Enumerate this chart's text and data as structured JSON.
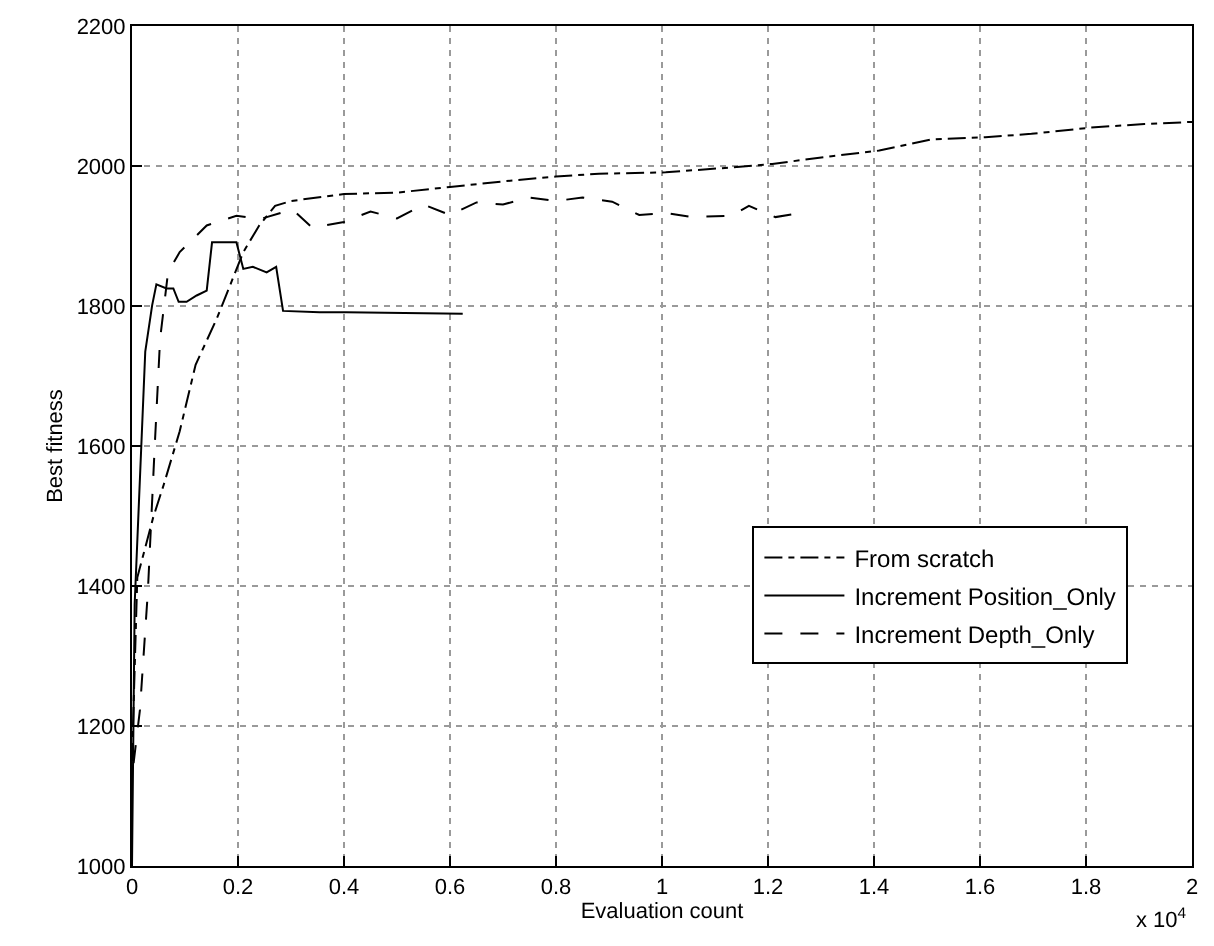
{
  "chart_data": {
    "type": "line",
    "xlabel": "Evaluation count",
    "ylabel": "Best fitness",
    "annotations": [
      "x 10$^{4}$"
    ],
    "xlim": [
      0,
      2
    ],
    "xticks": [
      0,
      0.2,
      0.4,
      0.6,
      0.8,
      1,
      1.2,
      1.4,
      1.6,
      1.8,
      2
    ],
    "ylim": [
      1000,
      2200
    ],
    "yticks": [
      1000,
      1200,
      1400,
      1600,
      1800,
      2000,
      2200
    ],
    "grid": true,
    "legend": "bottom right",
    "marker": "none",
    "series": [
      {
        "name": "From scratch",
        "color": "#000000",
        "line_style": "dashdot",
        "x": [
          0,
          0.01,
          0.04,
          0.06,
          0.09,
          0.12,
          0.16,
          0.19,
          0.21,
          0.24,
          0.27,
          0.3,
          0.4,
          0.5,
          0.6,
          0.7,
          0.8,
          0.881,
          1.007,
          1.132,
          1.208,
          1.32,
          1.41,
          1.509,
          1.61,
          1.697,
          1.81,
          1.91,
          2.0
        ],
        "values": [
          1150,
          1412,
          1498,
          1545,
          1621,
          1716,
          1782,
          1839,
          1877,
          1915,
          1943,
          1950,
          1960,
          1962,
          1970,
          1978,
          1985,
          1989,
          1991,
          1998,
          2003,
          2014,
          2022,
          2038,
          2041,
          2046,
          2055,
          2060,
          2063
        ]
      },
      {
        "name": "Increment Position_Only",
        "color": "#000000",
        "line_style": "solid",
        "x": [
          0,
          0.005,
          0.025,
          0.038,
          0.046,
          0.065,
          0.078,
          0.088,
          0.103,
          0.122,
          0.141,
          0.151,
          0.197,
          0.21,
          0.228,
          0.254,
          0.272,
          0.285,
          0.354,
          0.404,
          0.624
        ],
        "values": [
          1000,
          1374,
          1735,
          1801,
          1831,
          1825,
          1825,
          1806,
          1806,
          1815,
          1822,
          1891,
          1891,
          1853,
          1856,
          1848,
          1856,
          1793,
          1791,
          1791,
          1789
        ]
      },
      {
        "name": "Increment Depth_Only",
        "color": "#000000",
        "line_style": "dashed",
        "x": [
          0.003,
          0.015,
          0.03,
          0.043,
          0.053,
          0.068,
          0.09,
          0.141,
          0.197,
          0.241,
          0.285,
          0.304,
          0.34,
          0.4,
          0.45,
          0.5,
          0.55,
          0.6,
          0.65,
          0.7,
          0.75,
          0.8,
          0.85,
          0.906,
          0.957,
          1.007,
          1.057,
          1.132,
          1.164,
          1.214,
          1.245
        ],
        "values": [
          1147,
          1223,
          1393,
          1602,
          1753,
          1848,
          1877,
          1915,
          1929,
          1924,
          1934,
          1937,
          1912,
          1920,
          1935,
          1925,
          1945,
          1930,
          1948,
          1945,
          1955,
          1950,
          1955,
          1949,
          1930,
          1933,
          1927,
          1929,
          1943,
          1927,
          1931
        ]
      }
    ]
  }
}
